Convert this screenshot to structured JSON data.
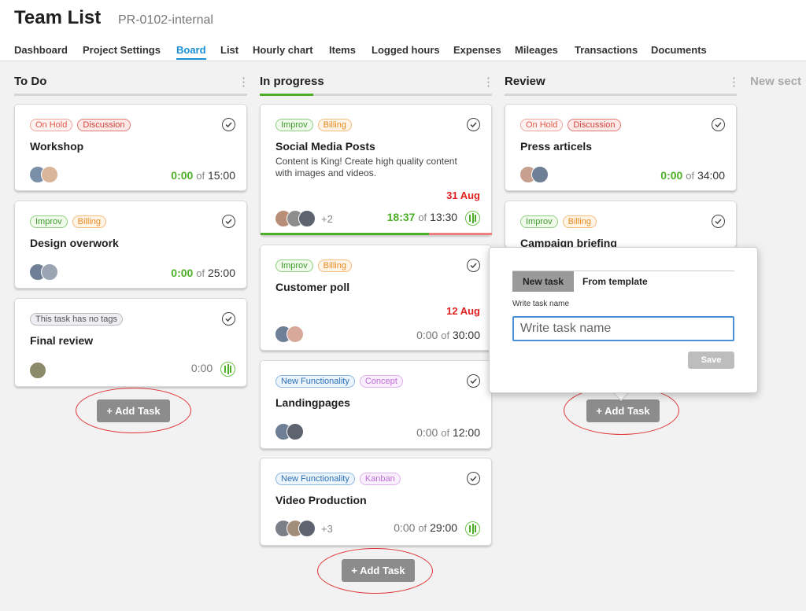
{
  "header": {
    "title": "Team List",
    "project_code": "PR-0102-internal"
  },
  "nav": {
    "tabs": [
      "Dashboard",
      "Project Settings",
      "Board",
      "List",
      "Hourly chart",
      "Items",
      "Logged hours",
      "Expenses",
      "Mileages",
      "Transactions",
      "Documents"
    ],
    "active_tab": "Board"
  },
  "columns": {
    "todo": {
      "title": "To Do",
      "add_label": "+ Add Task"
    },
    "inprogress": {
      "title": "In progress",
      "add_label": "+ Add Task",
      "progress_fraction": 0.23
    },
    "review": {
      "title": "Review",
      "add_label": "+ Add Task"
    },
    "new_section": "New sect"
  },
  "cards": {
    "workshop": {
      "tags": [
        "On Hold",
        "Discussion"
      ],
      "title": "Workshop",
      "time_used": "0:00",
      "time_of": "of",
      "time_total": "15:00"
    },
    "design": {
      "tags": [
        "Improv",
        "Billing"
      ],
      "title": "Design overwork",
      "time_used": "0:00",
      "time_of": "of",
      "time_total": "25:00"
    },
    "final": {
      "tags": [
        "This task has no tags"
      ],
      "title": "Final review",
      "time_used": "0:00"
    },
    "social": {
      "tags": [
        "Improv",
        "Billing"
      ],
      "title": "Social Media Posts",
      "description": "Content is King! Create high quality content with images and videos.",
      "due": "31 Aug",
      "more_assignees": "+2",
      "time_used": "18:37",
      "time_of": "of",
      "time_total": "13:30"
    },
    "poll": {
      "tags": [
        "Improv",
        "Billing"
      ],
      "title": "Customer poll",
      "due": "12 Aug",
      "time_used": "0:00",
      "time_of": "of",
      "time_total": "30:00"
    },
    "landing": {
      "tags": [
        "New Functionality",
        "Concept"
      ],
      "title": "Landingpages",
      "time_used": "0:00",
      "time_of": "of",
      "time_total": "12:00"
    },
    "video": {
      "tags": [
        "New Functionality",
        "Kanban"
      ],
      "title": "Video Production",
      "more_assignees": "+3",
      "time_used": "0:00",
      "time_of": "of",
      "time_total": "29:00"
    },
    "press": {
      "tags": [
        "On Hold",
        "Discussion"
      ],
      "title": "Press articels",
      "time_used": "0:00",
      "time_of": "of",
      "time_total": "34:00"
    },
    "campaign": {
      "tags": [
        "Improv",
        "Billing"
      ],
      "title": "Campaign briefing"
    }
  },
  "popup": {
    "tab_new": "New task",
    "tab_template": "From template",
    "label": "Write task name",
    "placeholder": "Write task name",
    "save_label": "Save"
  },
  "colors": {
    "accent": "#1a8fd6",
    "green": "#4caf27",
    "red": "#e02020",
    "button_gray": "#8c8c8c"
  }
}
